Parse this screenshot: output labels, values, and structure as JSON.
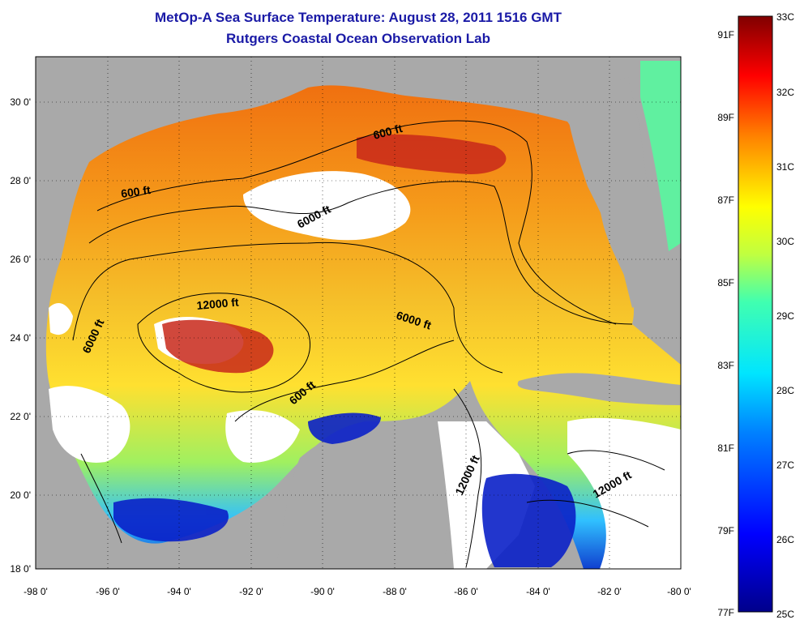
{
  "title": {
    "line1": "MetOp-A Sea Surface Temperature:  August 28, 2011 1516 GMT",
    "line2": "Rutgers Coastal Ocean Observation Lab"
  },
  "axes": {
    "x_ticks": [
      "-98 0'",
      "-96 0'",
      "-94 0'",
      "-92 0'",
      "-90 0'",
      "-88 0'",
      "-86 0'",
      "-84 0'",
      "-82 0'",
      "-80 0'"
    ],
    "y_ticks": [
      "30 0'",
      "28 0'",
      "26 0'",
      "24 0'",
      "22 0'",
      "20 0'",
      "18 0'"
    ],
    "lon_range": [
      -98,
      -80
    ],
    "lat_range": [
      18,
      31
    ]
  },
  "contour_labels": [
    "600 ft",
    "600 ft",
    "600 ft",
    "6000 ft",
    "6000 ft",
    "6000 ft",
    "12000 ft",
    "12000 ft",
    "12000 ft"
  ],
  "colorbar": {
    "celsius_labels": [
      "33C",
      "32C",
      "31C",
      "30C",
      "29C",
      "28C",
      "27C",
      "26C",
      "25C"
    ],
    "fahrenheit_labels": [
      "91F",
      "89F",
      "87F",
      "85F",
      "83F",
      "81F",
      "79F",
      "77F"
    ],
    "range_c": [
      25,
      33
    ]
  },
  "colors": {
    "land": "#a9a9a9",
    "cloud": "#ffffff",
    "title": "#1a1aa6"
  }
}
